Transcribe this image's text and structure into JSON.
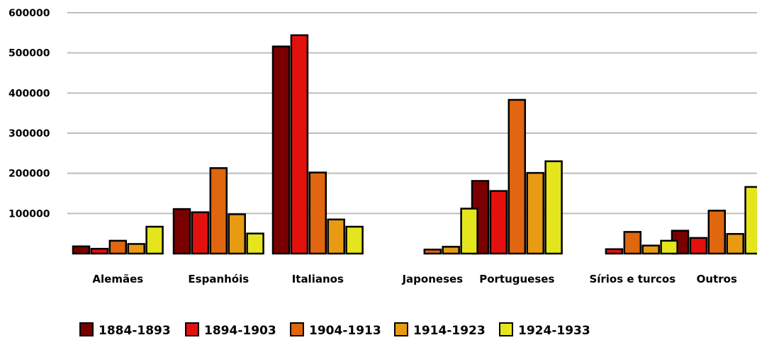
{
  "chart_data": {
    "type": "bar",
    "title": "",
    "xlabel": "",
    "ylabel": "",
    "ylim": [
      0,
      600000
    ],
    "yticks": [
      "600000",
      "500000",
      "400000",
      "300000",
      "200000",
      "100000"
    ],
    "grid": true,
    "legend_position": "bottom",
    "categories": [
      "Alemães",
      "Espanhóis",
      "Italianos",
      "Japoneses",
      "Portugueses",
      "Sírios e turcos",
      "Outros"
    ],
    "series": [
      {
        "name": "1884-1893",
        "color": "#7a0000",
        "values": [
          18000,
          111000,
          516000,
          null,
          181000,
          null,
          57000
        ]
      },
      {
        "name": "1894-1903",
        "color": "#e3110d",
        "values": [
          12000,
          103000,
          544000,
          null,
          156000,
          11000,
          39000
        ]
      },
      {
        "name": "1904-1913",
        "color": "#e0660f",
        "values": [
          32000,
          213000,
          202000,
          10000,
          383000,
          54000,
          107000
        ]
      },
      {
        "name": "1914-1923",
        "color": "#e89b12",
        "values": [
          24000,
          98000,
          85000,
          17000,
          201000,
          20000,
          49000
        ]
      },
      {
        "name": "1924-1933",
        "color": "#e5e51e",
        "values": [
          67000,
          50000,
          67000,
          112000,
          230000,
          32000,
          166000
        ]
      }
    ]
  }
}
